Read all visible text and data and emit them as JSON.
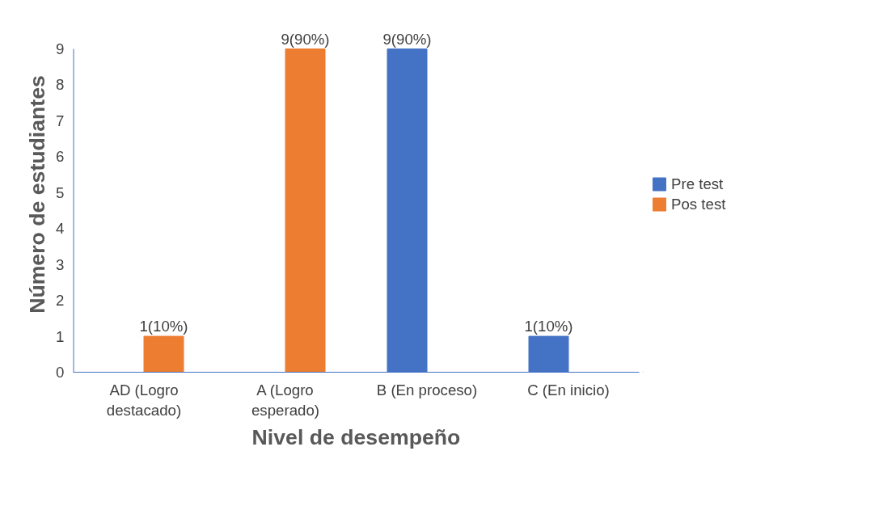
{
  "chart_data": {
    "type": "bar",
    "xlabel": "Nivel de desempeño",
    "ylabel": "Número de estudiantes",
    "categories": [
      "AD (Logro destacado)",
      "A (Logro esperado)",
      "B (En proceso)",
      "C (En inicio)"
    ],
    "series": [
      {
        "name": "Pre test",
        "color": "#4472c4",
        "values": [
          0,
          0,
          9,
          1
        ],
        "value_labels": [
          null,
          null,
          "9(90%)",
          "1(10%)"
        ]
      },
      {
        "name": "Pos test",
        "color": "#ed7d31",
        "values": [
          1,
          9,
          0,
          0
        ],
        "value_labels": [
          "1(10%)",
          "9(90%)",
          null,
          null
        ]
      }
    ],
    "ylim": [
      0,
      9
    ],
    "yticks": [
      0,
      1,
      2,
      3,
      4,
      5,
      6,
      7,
      8,
      9
    ],
    "grid": false,
    "legend": "right"
  }
}
